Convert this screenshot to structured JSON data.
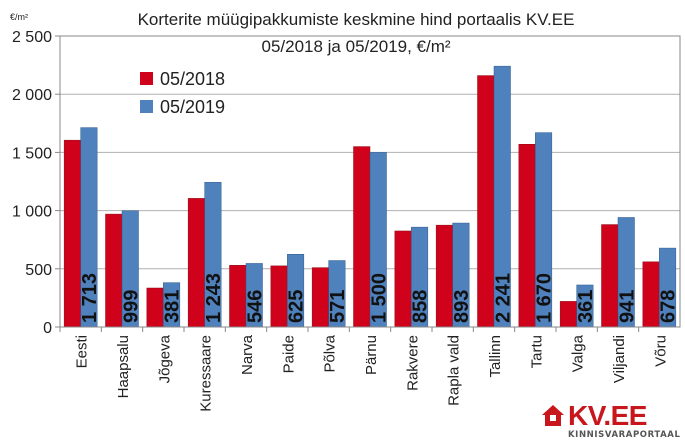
{
  "chart_data": {
    "type": "bar",
    "title_line1": "Korterite müügipakkumiste keskmine hind portaalis KV.EE",
    "title_line2": "05/2018 ja 05/2019, €/m²",
    "unit_label": "€/m²",
    "ylim": [
      0,
      2500
    ],
    "yticks": [
      0,
      500,
      1000,
      1500,
      2000,
      2500
    ],
    "ytick_labels": [
      "0",
      "500",
      "1 000",
      "1 500",
      "2 000",
      "2 500"
    ],
    "grid": true,
    "legend_position": "top-left",
    "categories": [
      "Eesti",
      "Haapsalu",
      "Jõgeva",
      "Kuressaare",
      "Narva",
      "Paide",
      "Põlva",
      "Pärnu",
      "Rakvere",
      "Rapla vald",
      "Tallinn",
      "Tartu",
      "Valga",
      "Viljandi",
      "Võru"
    ],
    "series": [
      {
        "name": "05/2018",
        "color": "#d0021b",
        "values": [
          1605,
          970,
          335,
          1105,
          530,
          525,
          510,
          1550,
          825,
          875,
          2160,
          1570,
          220,
          880,
          560
        ]
      },
      {
        "name": "05/2019",
        "color": "#4f81bd",
        "values": [
          1713,
          999,
          381,
          1243,
          546,
          625,
          571,
          1500,
          858,
          893,
          2241,
          1670,
          361,
          941,
          678
        ],
        "data_labels": [
          "1 713",
          "999",
          "381",
          "1 243",
          "546",
          "625",
          "571",
          "1 500",
          "858",
          "893",
          "2 241",
          "1 670",
          "361",
          "941",
          "678"
        ]
      }
    ]
  },
  "logo": {
    "name": "KV.EE",
    "tagline": "KINNISVARAPORTAAL",
    "color": "#c8161d"
  }
}
